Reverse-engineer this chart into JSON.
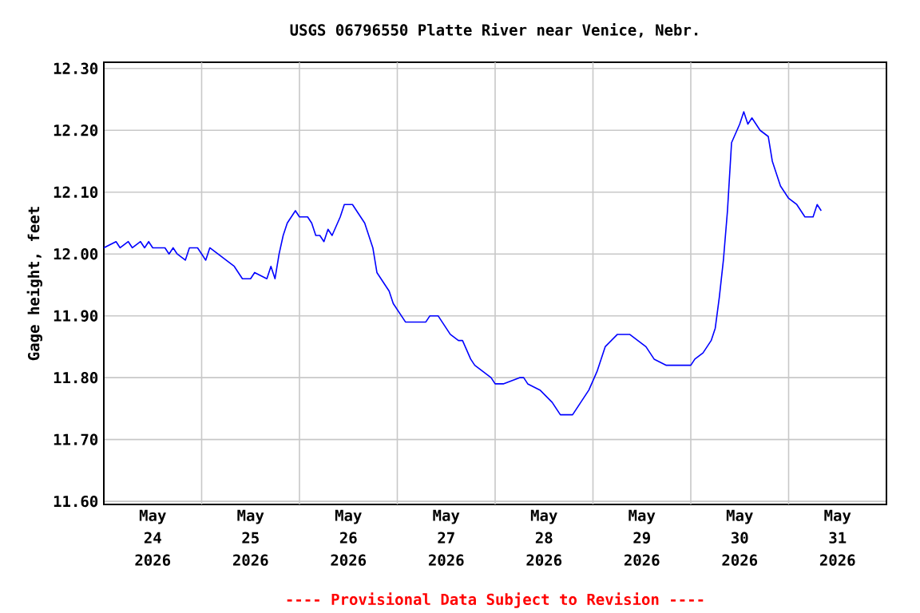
{
  "chart_data": {
    "type": "line",
    "title": "USGS 06796550 Platte River near Venice, Nebr.",
    "ylabel": "Gage height, feet",
    "annotations": [
      "---- Provisional Data Subject to Revision ----"
    ],
    "x": [
      "2026-05-24T00:00",
      "2026-05-24T03:00",
      "2026-05-24T04:00",
      "2026-05-24T06:00",
      "2026-05-24T07:00",
      "2026-05-24T09:00",
      "2026-05-24T10:00",
      "2026-05-24T11:00",
      "2026-05-24T12:00",
      "2026-05-24T15:00",
      "2026-05-24T16:00",
      "2026-05-24T17:00",
      "2026-05-24T18:00",
      "2026-05-24T20:00",
      "2026-05-24T21:00",
      "2026-05-24T23:00",
      "2026-05-25T00:00",
      "2026-05-25T01:00",
      "2026-05-25T02:00",
      "2026-05-25T04:00",
      "2026-05-25T06:00",
      "2026-05-25T08:00",
      "2026-05-25T10:00",
      "2026-05-25T12:00",
      "2026-05-25T13:00",
      "2026-05-25T16:00",
      "2026-05-25T17:00",
      "2026-05-25T18:00",
      "2026-05-25T19:00",
      "2026-05-25T20:00",
      "2026-05-25T21:00",
      "2026-05-25T23:00",
      "2026-05-26T00:00",
      "2026-05-26T02:00",
      "2026-05-26T03:00",
      "2026-05-26T04:00",
      "2026-05-26T05:00",
      "2026-05-26T06:00",
      "2026-05-26T07:00",
      "2026-05-26T08:00",
      "2026-05-26T10:00",
      "2026-05-26T11:00",
      "2026-05-26T13:00",
      "2026-05-26T15:00",
      "2026-05-26T16:00",
      "2026-05-26T18:00",
      "2026-05-26T19:00",
      "2026-05-26T22:00",
      "2026-05-26T23:00",
      "2026-05-27T01:00",
      "2026-05-27T02:00",
      "2026-05-27T07:00",
      "2026-05-27T08:00",
      "2026-05-27T10:00",
      "2026-05-27T12:00",
      "2026-05-27T13:00",
      "2026-05-27T15:00",
      "2026-05-27T16:00",
      "2026-05-27T18:00",
      "2026-05-27T19:00",
      "2026-05-27T21:00",
      "2026-05-27T23:00",
      "2026-05-28T00:00",
      "2026-05-28T02:00",
      "2026-05-28T06:00",
      "2026-05-28T07:00",
      "2026-05-28T08:00",
      "2026-05-28T11:00",
      "2026-05-28T14:00",
      "2026-05-28T16:00",
      "2026-05-28T19:00",
      "2026-05-28T21:00",
      "2026-05-28T23:00",
      "2026-05-29T01:00",
      "2026-05-29T03:00",
      "2026-05-29T06:00",
      "2026-05-29T09:00",
      "2026-05-29T13:00",
      "2026-05-29T15:00",
      "2026-05-29T18:00",
      "2026-05-29T20:00",
      "2026-05-30T00:00",
      "2026-05-30T01:00",
      "2026-05-30T03:00",
      "2026-05-30T05:00",
      "2026-05-30T06:00",
      "2026-05-30T07:00",
      "2026-05-30T08:00",
      "2026-05-30T09:00",
      "2026-05-30T10:00",
      "2026-05-30T12:00",
      "2026-05-30T13:00",
      "2026-05-30T14:00",
      "2026-05-30T15:00",
      "2026-05-30T17:00",
      "2026-05-30T19:00",
      "2026-05-30T20:00",
      "2026-05-30T22:00",
      "2026-05-31T00:00",
      "2026-05-31T02:00",
      "2026-05-31T04:00",
      "2026-05-31T06:00",
      "2026-05-31T07:00",
      "2026-05-31T08:00"
    ],
    "values": [
      12.01,
      12.02,
      12.01,
      12.02,
      12.01,
      12.02,
      12.01,
      12.02,
      12.01,
      12.01,
      12.0,
      12.01,
      12.0,
      11.99,
      12.01,
      12.01,
      12.0,
      11.99,
      12.01,
      12.0,
      11.99,
      11.98,
      11.96,
      11.96,
      11.97,
      11.96,
      11.98,
      11.96,
      12.0,
      12.03,
      12.05,
      12.07,
      12.06,
      12.06,
      12.05,
      12.03,
      12.03,
      12.02,
      12.04,
      12.03,
      12.06,
      12.08,
      12.08,
      12.06,
      12.05,
      12.01,
      11.97,
      11.94,
      11.92,
      11.9,
      11.89,
      11.89,
      11.9,
      11.9,
      11.88,
      11.87,
      11.86,
      11.86,
      11.83,
      11.82,
      11.81,
      11.8,
      11.79,
      11.79,
      11.8,
      11.8,
      11.79,
      11.78,
      11.76,
      11.74,
      11.74,
      11.76,
      11.78,
      11.81,
      11.85,
      11.87,
      11.87,
      11.85,
      11.83,
      11.82,
      11.82,
      11.82,
      11.83,
      11.84,
      11.86,
      11.88,
      11.93,
      11.99,
      12.07,
      12.18,
      12.21,
      12.23,
      12.21,
      12.22,
      12.2,
      12.19,
      12.15,
      12.11,
      12.09,
      12.08,
      12.06,
      12.06,
      12.08,
      12.07
    ],
    "color": "#0000ff",
    "xlim": [
      "2026-05-24T00:00",
      "2026-06-01T00:00"
    ],
    "xticks": [
      {
        "value": "2026-05-24T12:00",
        "label": "May 24 2026"
      },
      {
        "value": "2026-05-25T12:00",
        "label": "May 25 2026"
      },
      {
        "value": "2026-05-26T12:00",
        "label": "May 26 2026"
      },
      {
        "value": "2026-05-27T12:00",
        "label": "May 27 2026"
      },
      {
        "value": "2026-05-28T12:00",
        "label": "May 28 2026"
      },
      {
        "value": "2026-05-29T12:00",
        "label": "May 29 2026"
      },
      {
        "value": "2026-05-30T12:00",
        "label": "May 30 2026"
      },
      {
        "value": "2026-05-31T12:00",
        "label": "May 31 2026"
      },
      {
        "value": "2026-05-25T00:00",
        "label": null
      },
      {
        "value": "2026-05-26T00:00",
        "label": null
      },
      {
        "value": "2026-05-27T00:00",
        "label": null
      },
      {
        "value": "2026-05-28T00:00",
        "label": null
      },
      {
        "value": "2026-05-29T00:00",
        "label": null
      },
      {
        "value": "2026-05-30T00:00",
        "label": null
      },
      {
        "value": "2026-05-31T00:00",
        "label": null
      }
    ],
    "ylim": [
      11.595,
      12.31
    ],
    "yticks": [
      {
        "value": 11.6,
        "label": "11.60"
      },
      {
        "value": 11.7,
        "label": "11.70"
      },
      {
        "value": 11.8,
        "label": "11.80"
      },
      {
        "value": 11.9,
        "label": "11.90"
      },
      {
        "value": 12.0,
        "label": "12.00"
      },
      {
        "value": 12.1,
        "label": "12.10"
      },
      {
        "value": 12.2,
        "label": "12.20"
      },
      {
        "value": 12.3,
        "label": "12.30"
      }
    ],
    "grid": true,
    "marker": "none",
    "line_style": "solid"
  }
}
